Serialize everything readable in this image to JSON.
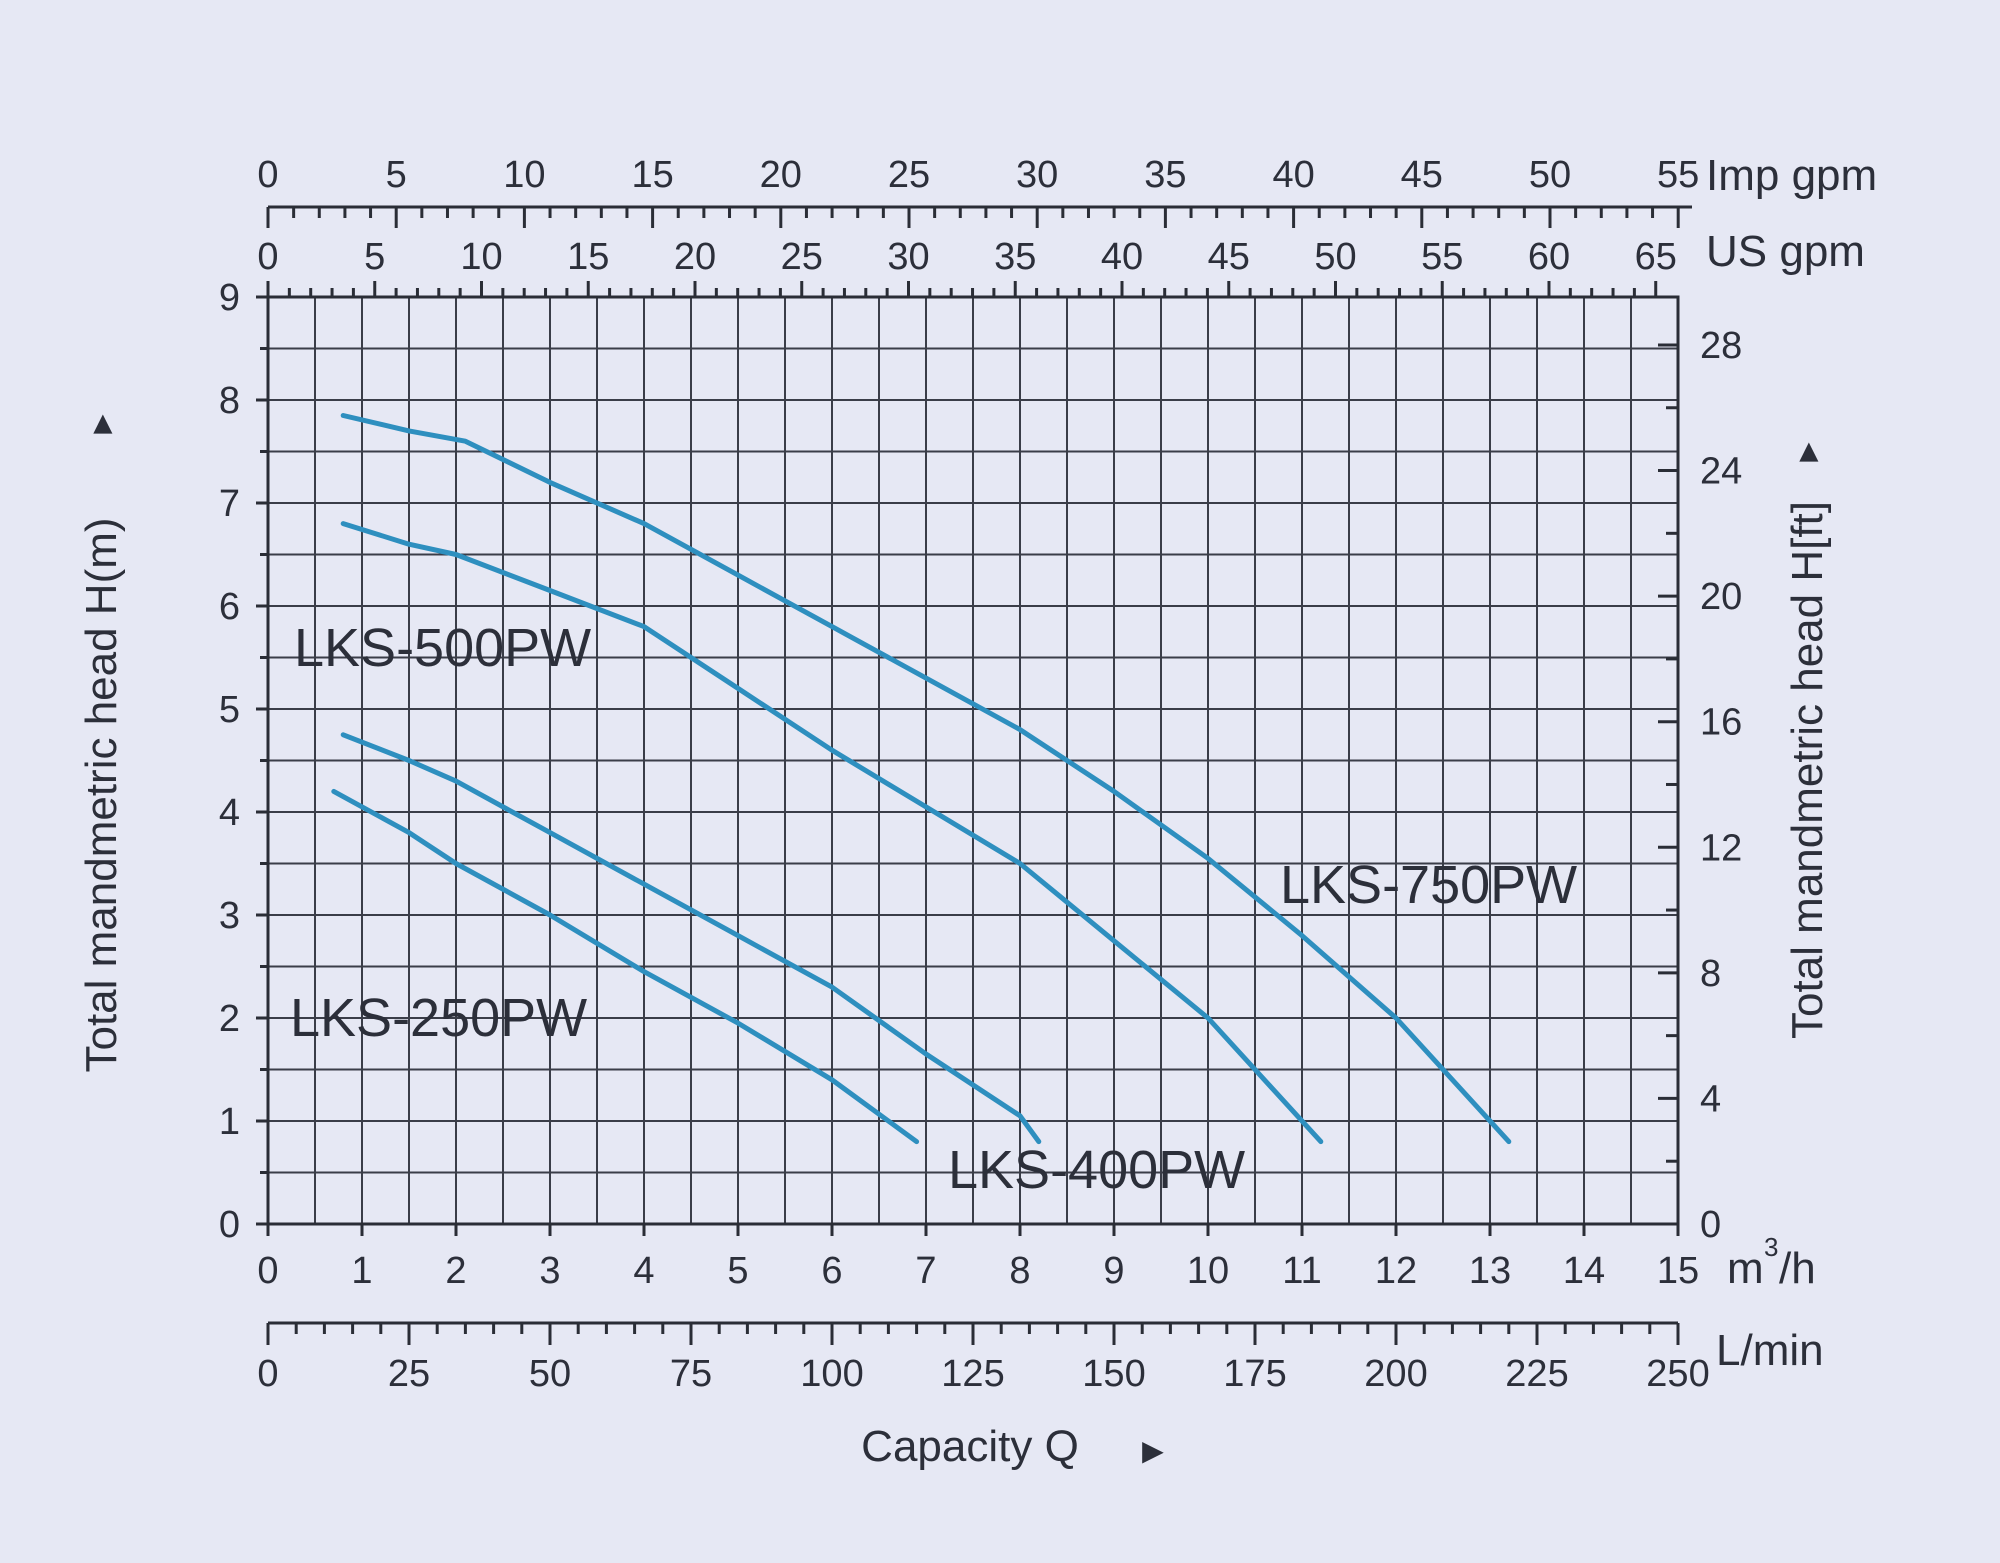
{
  "chart_data": {
    "type": "line",
    "title": "",
    "xlabel": "Capacity Q",
    "xlabel_arrow": "►",
    "ylabel_left": "Total mandmetric head H(m)",
    "ylabel_right": "Total mandmetric head H[ft]",
    "ylabel_arrow": "►",
    "x_unit": "m³/h",
    "x_unit_base": "m",
    "x_unit_sup": "3",
    "x_unit_rest": "/h",
    "xlim": [
      0,
      15
    ],
    "ylim": [
      0,
      9
    ],
    "x_ticks": [
      "0",
      "1",
      "2",
      "3",
      "4",
      "5",
      "6",
      "7",
      "8",
      "9",
      "10",
      "11",
      "12",
      "13",
      "14",
      "15"
    ],
    "y_ticks": [
      "0",
      "1",
      "2",
      "3",
      "4",
      "5",
      "6",
      "7",
      "8",
      "9"
    ],
    "right_axis": {
      "unit": "ft",
      "ticks": [
        "0",
        "4",
        "8",
        "12",
        "16",
        "20",
        "24",
        "28"
      ],
      "values": [
        0,
        4,
        8,
        12,
        16,
        20,
        24,
        28
      ]
    },
    "top_axis_imp": {
      "unit": "Imp gpm",
      "ticks": [
        "0",
        "5",
        "10",
        "15",
        "20",
        "25",
        "30",
        "35",
        "40",
        "45",
        "50",
        "55"
      ],
      "values": [
        0,
        5,
        10,
        15,
        20,
        25,
        30,
        35,
        40,
        45,
        50,
        55
      ]
    },
    "top_axis_us": {
      "unit": "US gpm",
      "ticks": [
        "0",
        "5",
        "10",
        "15",
        "20",
        "25",
        "30",
        "35",
        "40",
        "45",
        "50",
        "55",
        "60",
        "65"
      ],
      "values": [
        0,
        5,
        10,
        15,
        20,
        25,
        30,
        35,
        40,
        45,
        50,
        55,
        60,
        65
      ]
    },
    "bottom_axis_lmin": {
      "unit": "L/min",
      "ticks": [
        "0",
        "25",
        "50",
        "75",
        "100",
        "125",
        "150",
        "175",
        "200",
        "225",
        "250"
      ],
      "values": [
        0,
        25,
        50,
        75,
        100,
        125,
        150,
        175,
        200,
        225,
        250
      ]
    },
    "series": [
      {
        "name": "LKS-250PW",
        "x": [
          0.7,
          1.5,
          2,
          3,
          4,
          5,
          6,
          6.9
        ],
        "y": [
          4.2,
          3.8,
          3.5,
          3.0,
          2.45,
          1.95,
          1.4,
          0.8
        ]
      },
      {
        "name": "LKS-400PW",
        "x": [
          0.8,
          1.5,
          2,
          3,
          4,
          5,
          6,
          7,
          8,
          8.2
        ],
        "y": [
          4.75,
          4.5,
          4.3,
          3.8,
          3.3,
          2.8,
          2.3,
          1.65,
          1.05,
          0.8
        ]
      },
      {
        "name": "LKS-500PW",
        "x": [
          0.8,
          1.5,
          2,
          3,
          4,
          5,
          6,
          7,
          8,
          9,
          10,
          11.2
        ],
        "y": [
          6.8,
          6.6,
          6.5,
          6.15,
          5.8,
          5.2,
          4.6,
          4.05,
          3.5,
          2.75,
          2.0,
          0.8
        ]
      },
      {
        "name": "LKS-750PW",
        "x": [
          0.8,
          1.5,
          2.1,
          3,
          4,
          5,
          6,
          7,
          8,
          9,
          10,
          11,
          12,
          13.2
        ],
        "y": [
          7.85,
          7.7,
          7.6,
          7.2,
          6.8,
          6.3,
          5.8,
          5.3,
          4.8,
          4.2,
          3.55,
          2.8,
          2.0,
          0.8
        ]
      }
    ],
    "series_labels": [
      "LKS-250PW",
      "LKS-400PW",
      "LKS-500PW",
      "LKS-750PW"
    ],
    "colors": {
      "curve": "#2e8fbf",
      "grid": "#3a3d48",
      "text": "#2c2f3a"
    },
    "grid": true
  }
}
